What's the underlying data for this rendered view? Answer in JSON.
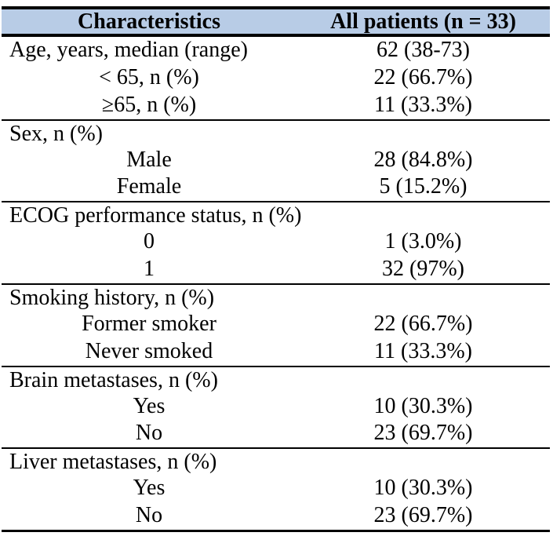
{
  "table": {
    "colors": {
      "header_bg": "#B8CCE6",
      "border": "#000000"
    },
    "header": {
      "characteristics": "Characteristics",
      "all_patients": "All patients (n = 33)"
    },
    "sections": [
      {
        "rows": [
          {
            "label": "Age, years, median (range)",
            "value": "62 (38-73)",
            "align": "left"
          },
          {
            "label": "< 65, n (%)",
            "value": "22 (66.7%)",
            "align": "center"
          },
          {
            "label": "≥65, n (%)",
            "value": "11 (33.3%)",
            "align": "center"
          }
        ]
      },
      {
        "rows": [
          {
            "label": "Sex, n (%)",
            "value": "",
            "align": "left"
          },
          {
            "label": "Male",
            "value": "28 (84.8%)",
            "align": "center"
          },
          {
            "label": "Female",
            "value": "5 (15.2%)",
            "align": "center"
          }
        ]
      },
      {
        "rows": [
          {
            "label": "ECOG performance status, n (%)",
            "value": "",
            "align": "left"
          },
          {
            "label": "0",
            "value": "1 (3.0%)",
            "align": "center"
          },
          {
            "label": "1",
            "value": "32 (97%)",
            "align": "center"
          }
        ]
      },
      {
        "rows": [
          {
            "label": "Smoking history, n (%)",
            "value": "",
            "align": "left"
          },
          {
            "label": "Former smoker",
            "value": "22 (66.7%)",
            "align": "center"
          },
          {
            "label": "Never smoked",
            "value": "11 (33.3%)",
            "align": "center"
          }
        ]
      },
      {
        "rows": [
          {
            "label": "Brain metastases, n (%)",
            "value": "",
            "align": "left"
          },
          {
            "label": "Yes",
            "value": "10 (30.3%)",
            "align": "center"
          },
          {
            "label": "No",
            "value": "23 (69.7%)",
            "align": "center"
          }
        ]
      },
      {
        "rows": [
          {
            "label": "Liver metastases, n (%)",
            "value": "",
            "align": "left"
          },
          {
            "label": "Yes",
            "value": "10 (30.3%)",
            "align": "center"
          },
          {
            "label": "No",
            "value": "23 (69.7%)",
            "align": "center"
          }
        ]
      }
    ]
  }
}
